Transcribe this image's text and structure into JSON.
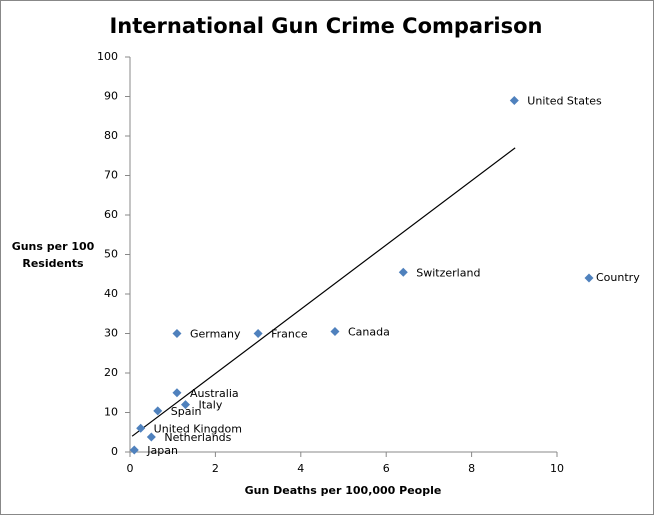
{
  "chart_data": {
    "type": "scatter",
    "title": "International Gun Crime Comparison",
    "x_label": "Gun Deaths per 100,000 People",
    "y_label": "Guns per 100 Residents",
    "series": [
      {
        "name": "Country",
        "color": "#4f81bd",
        "labels": [
          "United States",
          "Switzerland",
          "Canada",
          "France",
          "Germany",
          "Australia",
          "Italy",
          "Spain",
          "United Kingdom",
          "Netherlands",
          "Japan"
        ],
        "x": [
          9.0,
          6.4,
          4.8,
          3.0,
          1.1,
          1.1,
          1.3,
          0.65,
          0.25,
          0.5,
          0.1
        ],
        "values": [
          89,
          45.5,
          30.5,
          30,
          30,
          15,
          12,
          10.4,
          6,
          3.8,
          0.5
        ]
      }
    ],
    "trendline": {
      "color": "#000000",
      "x": [
        0.05,
        9.02
      ],
      "y": [
        4,
        77
      ]
    },
    "xlim": [
      0,
      10
    ],
    "xticks": [
      0,
      2,
      4,
      6,
      8,
      10
    ],
    "ylim": [
      0,
      100
    ],
    "yticks": [
      0,
      10,
      20,
      30,
      40,
      50,
      60,
      70,
      80,
      90,
      100
    ],
    "grid": false,
    "legend": "right"
  }
}
